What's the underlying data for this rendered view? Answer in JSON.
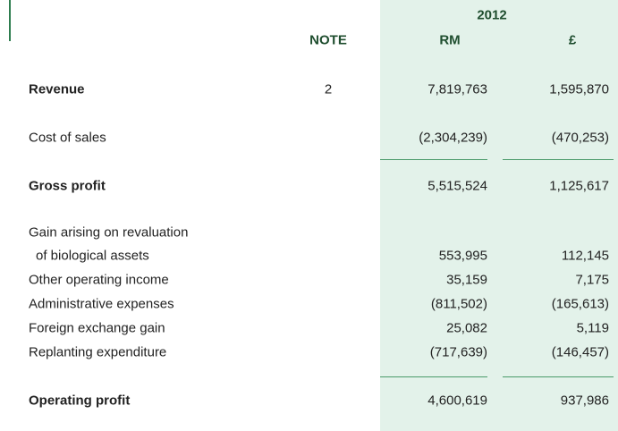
{
  "header": {
    "year": "2012",
    "note": "NOTE",
    "rm": "RM",
    "gbp": "£"
  },
  "rows": [
    {
      "label": "Revenue",
      "note": "2",
      "rm": "7,819,763",
      "gbp": "1,595,870",
      "bold": true
    },
    {
      "label": "Cost of sales",
      "rm": "(2,304,239)",
      "gbp": "(470,253)"
    },
    {
      "label": "Gross profit",
      "rm": "5,515,524",
      "gbp": "1,125,617",
      "bold": true
    },
    {
      "label": "Gain arising on revaluation"
    },
    {
      "label": "of biological assets",
      "rm": "553,995",
      "gbp": "112,145",
      "indent": true
    },
    {
      "label": "Other operating income",
      "rm": "35,159",
      "gbp": "7,175"
    },
    {
      "label": "Administrative expenses",
      "rm": "(811,502)",
      "gbp": "(165,613)"
    },
    {
      "label": "Foreign exchange gain",
      "rm": "25,082",
      "gbp": "5,119"
    },
    {
      "label": "Replanting expenditure",
      "rm": "(717,639)",
      "gbp": "(146,457)"
    },
    {
      "label": "Operating profit",
      "rm": "4,600,619",
      "gbp": "937,986",
      "bold": true
    }
  ]
}
